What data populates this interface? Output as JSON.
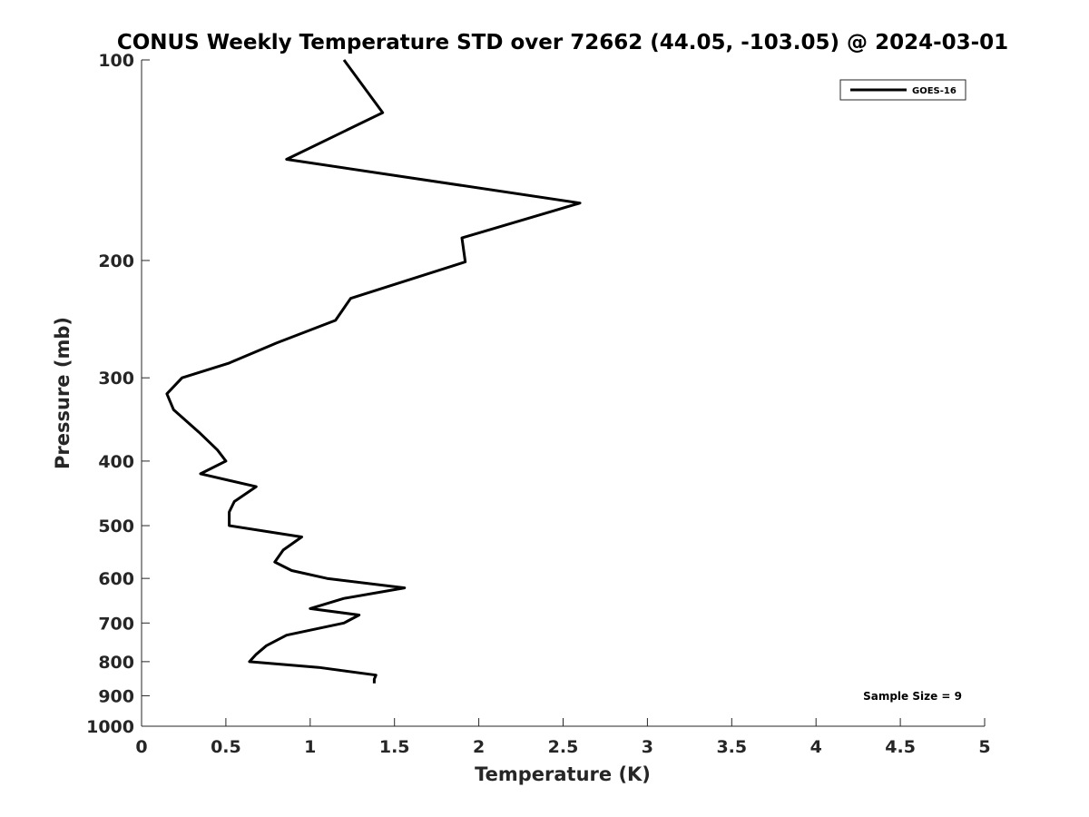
{
  "chart_data": {
    "type": "line",
    "title": "CONUS Weekly Temperature STD over 72662 (44.05, -103.05) @ 2024-03-01",
    "xlabel": "Temperature (K)",
    "ylabel": "Pressure (mb)",
    "xlim": [
      0,
      5
    ],
    "ylim": [
      100,
      1000
    ],
    "y_scale": "log",
    "y_reversed": true,
    "grid": false,
    "legend_position": "top-right",
    "x_ticks": [
      "0",
      "0.5",
      "1",
      "1.5",
      "2",
      "2.5",
      "3",
      "3.5",
      "4",
      "4.5",
      "5"
    ],
    "y_ticks": [
      "100",
      "200",
      "300",
      "400",
      "500",
      "600",
      "700",
      "800",
      "900",
      "1000"
    ],
    "series": [
      {
        "name": "GOES-16",
        "color": "#000000",
        "points": [
          {
            "t": 1.2,
            "p": 100
          },
          {
            "t": 1.43,
            "p": 120
          },
          {
            "t": 0.86,
            "p": 141
          },
          {
            "t": 2.6,
            "p": 164
          },
          {
            "t": 1.9,
            "p": 185
          },
          {
            "t": 1.92,
            "p": 201
          },
          {
            "t": 1.24,
            "p": 228
          },
          {
            "t": 1.15,
            "p": 246
          },
          {
            "t": 0.8,
            "p": 266
          },
          {
            "t": 0.52,
            "p": 285
          },
          {
            "t": 0.24,
            "p": 300
          },
          {
            "t": 0.15,
            "p": 317
          },
          {
            "t": 0.19,
            "p": 335
          },
          {
            "t": 0.34,
            "p": 362
          },
          {
            "t": 0.45,
            "p": 385
          },
          {
            "t": 0.5,
            "p": 400
          },
          {
            "t": 0.35,
            "p": 418
          },
          {
            "t": 0.68,
            "p": 437
          },
          {
            "t": 0.55,
            "p": 460
          },
          {
            "t": 0.52,
            "p": 477
          },
          {
            "t": 0.52,
            "p": 500
          },
          {
            "t": 0.95,
            "p": 520
          },
          {
            "t": 0.84,
            "p": 544
          },
          {
            "t": 0.79,
            "p": 567
          },
          {
            "t": 0.89,
            "p": 584
          },
          {
            "t": 1.1,
            "p": 600
          },
          {
            "t": 1.56,
            "p": 620
          },
          {
            "t": 1.2,
            "p": 643
          },
          {
            "t": 1.0,
            "p": 666
          },
          {
            "t": 1.29,
            "p": 681
          },
          {
            "t": 1.2,
            "p": 700
          },
          {
            "t": 0.86,
            "p": 730
          },
          {
            "t": 0.74,
            "p": 757
          },
          {
            "t": 0.68,
            "p": 780
          },
          {
            "t": 0.64,
            "p": 800
          },
          {
            "t": 1.05,
            "p": 816
          },
          {
            "t": 1.39,
            "p": 838
          },
          {
            "t": 1.38,
            "p": 850
          },
          {
            "t": 1.38,
            "p": 862
          }
        ]
      }
    ],
    "legend": [
      {
        "label": "GOES-16",
        "color": "#000000"
      }
    ],
    "annotation": "Sample Size = 9"
  }
}
